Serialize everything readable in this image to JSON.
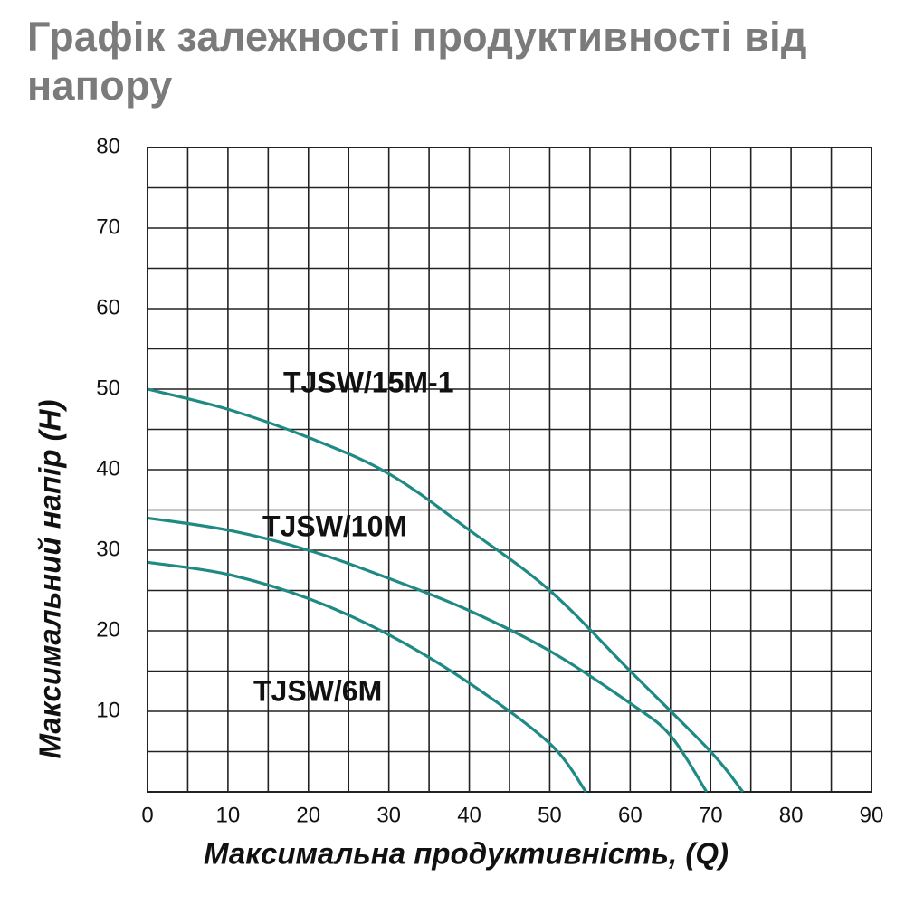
{
  "chart_data": {
    "type": "line",
    "title": "Графік залежності продуктивності від напору",
    "x_label": "Максимальна продуктивність, (Q)",
    "y_label": "Максимальний напір (H)",
    "xlim": [
      0,
      90
    ],
    "ylim": [
      0,
      80
    ],
    "xticks": [
      0,
      10,
      20,
      30,
      40,
      50,
      60,
      70,
      80,
      90
    ],
    "yticks": [
      10,
      20,
      30,
      40,
      50,
      60,
      70,
      80
    ],
    "minor_xticks": [
      5,
      15,
      25,
      35,
      45,
      55,
      65,
      75,
      85
    ],
    "minor_yticks": [
      5,
      15,
      25,
      35,
      45,
      55,
      65,
      75
    ],
    "grid": true,
    "series": [
      {
        "name": "TJSW/15M-1",
        "color": "#1f8a84",
        "x": [
          0,
          10,
          20,
          30,
          40,
          50,
          60,
          70,
          74
        ],
        "values": [
          50,
          47.5,
          44,
          39.5,
          32.5,
          25,
          15,
          5,
          0
        ]
      },
      {
        "name": "TJSW/10M",
        "color": "#1f8a84",
        "x": [
          0,
          10,
          20,
          30,
          40,
          50,
          60,
          65,
          69.5
        ],
        "values": [
          34,
          32.5,
          30,
          26.5,
          22.5,
          17.5,
          11,
          7,
          0
        ]
      },
      {
        "name": "TJSW/6M",
        "color": "#1f8a84",
        "x": [
          0,
          10,
          20,
          30,
          40,
          50,
          54.5
        ],
        "values": [
          28.5,
          27,
          24,
          19.5,
          13.5,
          6,
          0
        ]
      }
    ]
  }
}
